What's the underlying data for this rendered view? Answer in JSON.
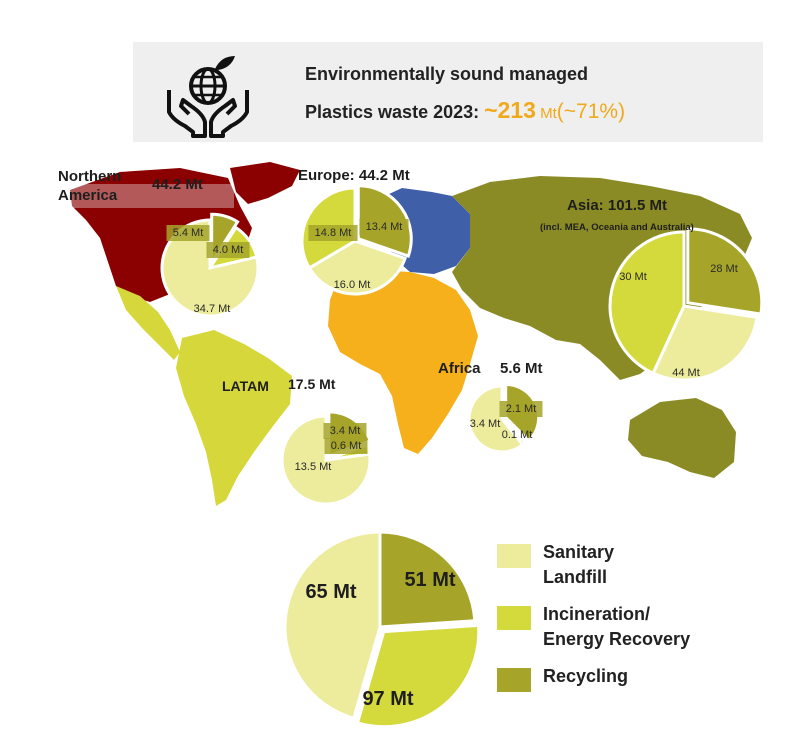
{
  "header": {
    "line1": "Environmentally sound managed",
    "line2_prefix": "Plastics waste 2023: ",
    "total_value": "~213",
    "total_unit": " Mt",
    "total_pct": "(~71%)"
  },
  "colors": {
    "sanitary_landfill": "#ecec9c",
    "incineration": "#d4d93c",
    "recycling": "#a6a52a",
    "northern_america": "#8b0000",
    "europe": "#3f5fa8",
    "asia": "#8b8b25",
    "africa": "#f5b01b",
    "latam": "#d6d73a",
    "oceania": "#8b8b25",
    "accent": "#f0a91a"
  },
  "legend": [
    {
      "label": "Sanitary\nLandfill",
      "color": "#ecec9c"
    },
    {
      "label": "Incineration/\nEnergy Recovery",
      "color": "#d4d93c"
    },
    {
      "label": "Recycling",
      "color": "#a6a52a"
    }
  ],
  "chart_data": [
    {
      "type": "pie",
      "region": "Northern America",
      "title_parts": [
        "Northern",
        "America"
      ],
      "total": "44.2 Mt",
      "slices": [
        {
          "category": "Sanitary Landfill",
          "value": 34.7,
          "label": "34.7 Mt"
        },
        {
          "category": "Incineration/Energy Recovery",
          "value": 5.4,
          "label": "5.4 Mt"
        },
        {
          "category": "Recycling",
          "value": 4.0,
          "label": "4.0 Mt"
        }
      ]
    },
    {
      "type": "pie",
      "region": "Europe",
      "title": "Europe: 44.2 Mt",
      "slices": [
        {
          "category": "Sanitary Landfill",
          "value": 16.0,
          "label": "16.0 Mt"
        },
        {
          "category": "Incineration/Energy Recovery",
          "value": 14.8,
          "label": "14.8 Mt"
        },
        {
          "category": "Recycling",
          "value": 13.4,
          "label": "13.4 Mt"
        }
      ]
    },
    {
      "type": "pie",
      "region": "Asia",
      "title": "Asia: 101.5 Mt",
      "note": "(incl. MEA, Oceania and Australia)",
      "slices": [
        {
          "category": "Sanitary Landfill",
          "value": 30,
          "label": "30 Mt"
        },
        {
          "category": "Incineration/Energy Recovery",
          "value": 44,
          "label": "44 Mt"
        },
        {
          "category": "Recycling",
          "value": 28,
          "label": "28 Mt"
        }
      ]
    },
    {
      "type": "pie",
      "region": "LATAM",
      "title": "LATAM",
      "total": "17.5 Mt",
      "slices": [
        {
          "category": "Sanitary Landfill",
          "value": 13.5,
          "label": "13.5 Mt"
        },
        {
          "category": "Incineration/Energy Recovery",
          "value": 0.6,
          "label": "0.6 Mt"
        },
        {
          "category": "Recycling",
          "value": 3.4,
          "label": "3.4 Mt"
        }
      ]
    },
    {
      "type": "pie",
      "region": "Africa",
      "title": "Africa",
      "total": "5.6 Mt",
      "slices": [
        {
          "category": "Sanitary Landfill",
          "value": 3.4,
          "label": "3.4 Mt"
        },
        {
          "category": "Incineration/Energy Recovery",
          "value": 0.1,
          "label": "0.1 Mt"
        },
        {
          "category": "Recycling",
          "value": 2.1,
          "label": "2.1 Mt"
        }
      ]
    },
    {
      "type": "pie",
      "region": "Global",
      "slices": [
        {
          "category": "Sanitary Landfill",
          "value": 97,
          "label": "97 Mt"
        },
        {
          "category": "Incineration/Energy Recovery",
          "value": 65,
          "label": "65 Mt"
        },
        {
          "category": "Recycling",
          "value": 51,
          "label": "51 Mt"
        }
      ]
    }
  ]
}
